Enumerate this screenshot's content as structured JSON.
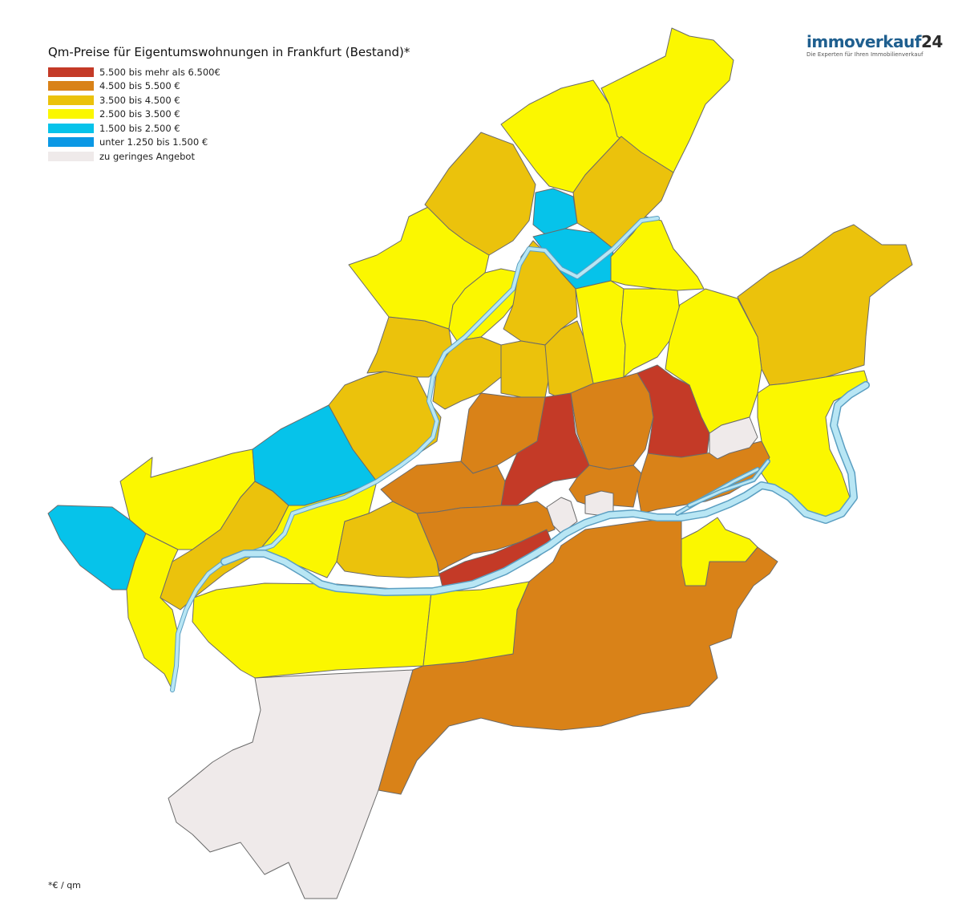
{
  "title": "Qm-Preise für Eigentumswohnungen in Frankfurt (Bestand)*",
  "legend": [
    {
      "label": "5.500 bis mehr als 6.500€",
      "color": "#c43a27"
    },
    {
      "label": "4.500 bis 5.500 €",
      "color": "#d98218"
    },
    {
      "label": "3.500 bis 4.500 €",
      "color": "#ebc20c"
    },
    {
      "label": "2.500 bis 3.500 €",
      "color": "#fbf700"
    },
    {
      "label": "1.500 bis 2.500 €",
      "color": "#06c3ea"
    },
    {
      "label": "unter 1.250 bis 1.500 €",
      "color": "#0b98e5"
    },
    {
      "label": "zu geringes Angebot",
      "color": "#efeaea"
    }
  ],
  "brand": {
    "name": "immoverkauf",
    "number": "24",
    "tagline": "Die Experten für Ihren Immobilienverkauf"
  },
  "footnote": "*€ / qm",
  "colors": {
    "river": "#b8e6f4",
    "river_edge": "#5b9fc2",
    "border": "#6a6a6a"
  }
}
